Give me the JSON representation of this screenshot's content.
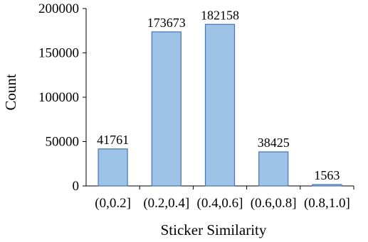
{
  "chart_data": {
    "type": "bar",
    "categories": [
      "(0,0.2]",
      "(0.2,0.4]",
      "(0.4,0.6]",
      "(0.6,0.8]",
      "(0.8,1.0]"
    ],
    "values": [
      41761,
      173673,
      182158,
      38425,
      1563
    ],
    "data_labels": [
      "41761",
      "173673",
      "182158",
      "38425",
      "1563"
    ],
    "xlabel": "Sticker Similarity",
    "ylabel": "Count",
    "ylim": [
      0,
      200000
    ],
    "yticks": [
      0,
      50000,
      100000,
      150000,
      200000
    ],
    "ytick_labels": [
      "0",
      "50000",
      "100000",
      "150000",
      "200000"
    ],
    "grid": false,
    "legend": "none",
    "colors": {
      "bar_fill": "#9dc3e6",
      "bar_stroke": "#4472c4",
      "axis": "#000000"
    }
  }
}
